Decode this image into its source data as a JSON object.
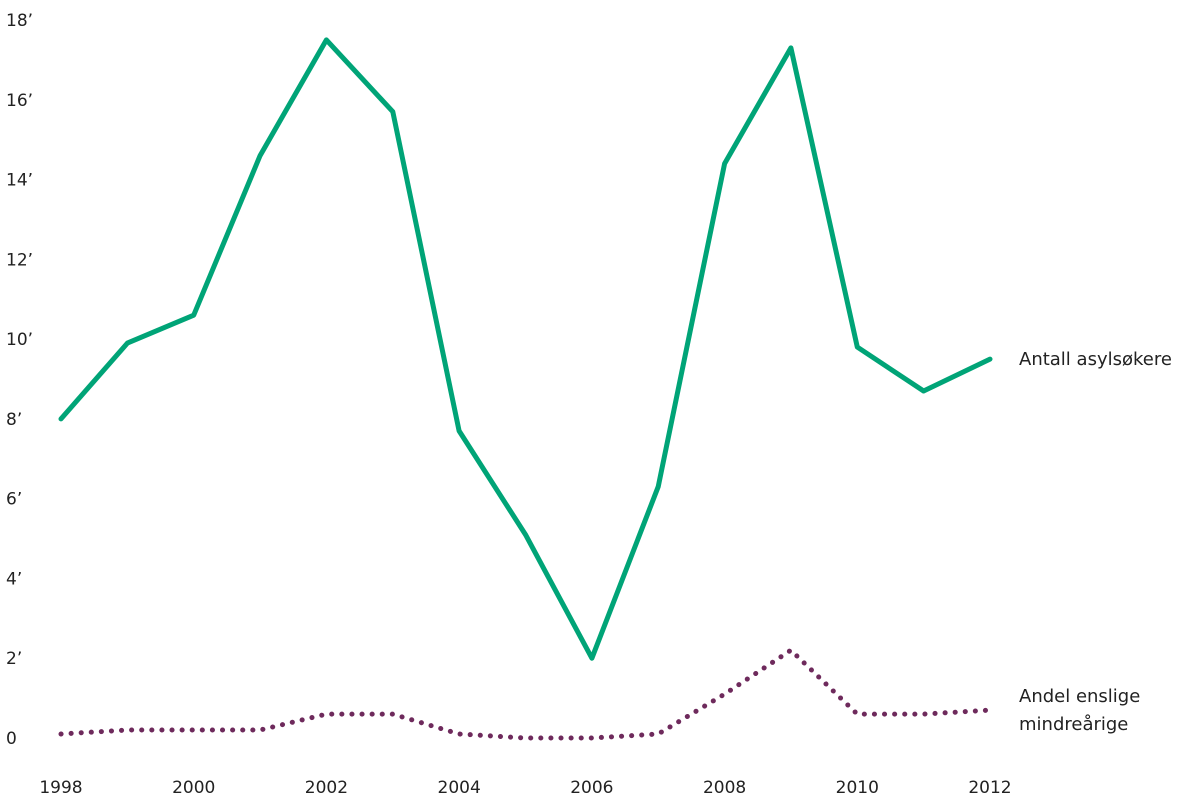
{
  "chart_data": {
    "type": "line",
    "x": [
      1998,
      1999,
      2000,
      2001,
      2002,
      2003,
      2004,
      2005,
      2006,
      2007,
      2008,
      2009,
      2010,
      2011,
      2012
    ],
    "xticks": [
      1998,
      2000,
      2002,
      2004,
      2006,
      2008,
      2010,
      2012
    ],
    "xtick_labels": [
      "1998",
      "2000",
      "2002",
      "2004",
      "2006",
      "2008",
      "2010",
      "2012"
    ],
    "xlim": [
      1998,
      2012
    ],
    "yticks": [
      0,
      2,
      4,
      6,
      8,
      10,
      12,
      14,
      16,
      18
    ],
    "ytick_labels": [
      "0",
      "2’",
      "4’",
      "6’",
      "8’",
      "10’",
      "12’",
      "14’",
      "16’",
      "18’"
    ],
    "ylim": [
      0,
      18
    ],
    "grid": false,
    "series": [
      {
        "name": "Antall asylsøkere",
        "label_lines": [
          "Antall asylsøkere"
        ],
        "color": "#00a477",
        "style": "solid",
        "values": [
          8.0,
          9.9,
          10.6,
          14.6,
          17.5,
          15.7,
          7.7,
          5.1,
          2.0,
          6.3,
          14.4,
          17.3,
          9.8,
          8.7,
          9.5
        ]
      },
      {
        "name": "Andel enslige mindreårige",
        "label_lines": [
          "Andel enslige",
          "mindreårige"
        ],
        "color": "#6e2a5c",
        "style": "dotted",
        "values": [
          0.1,
          0.2,
          0.2,
          0.2,
          0.6,
          0.6,
          0.1,
          0.0,
          0.0,
          0.1,
          1.1,
          2.2,
          0.6,
          0.6,
          0.7
        ]
      }
    ]
  }
}
